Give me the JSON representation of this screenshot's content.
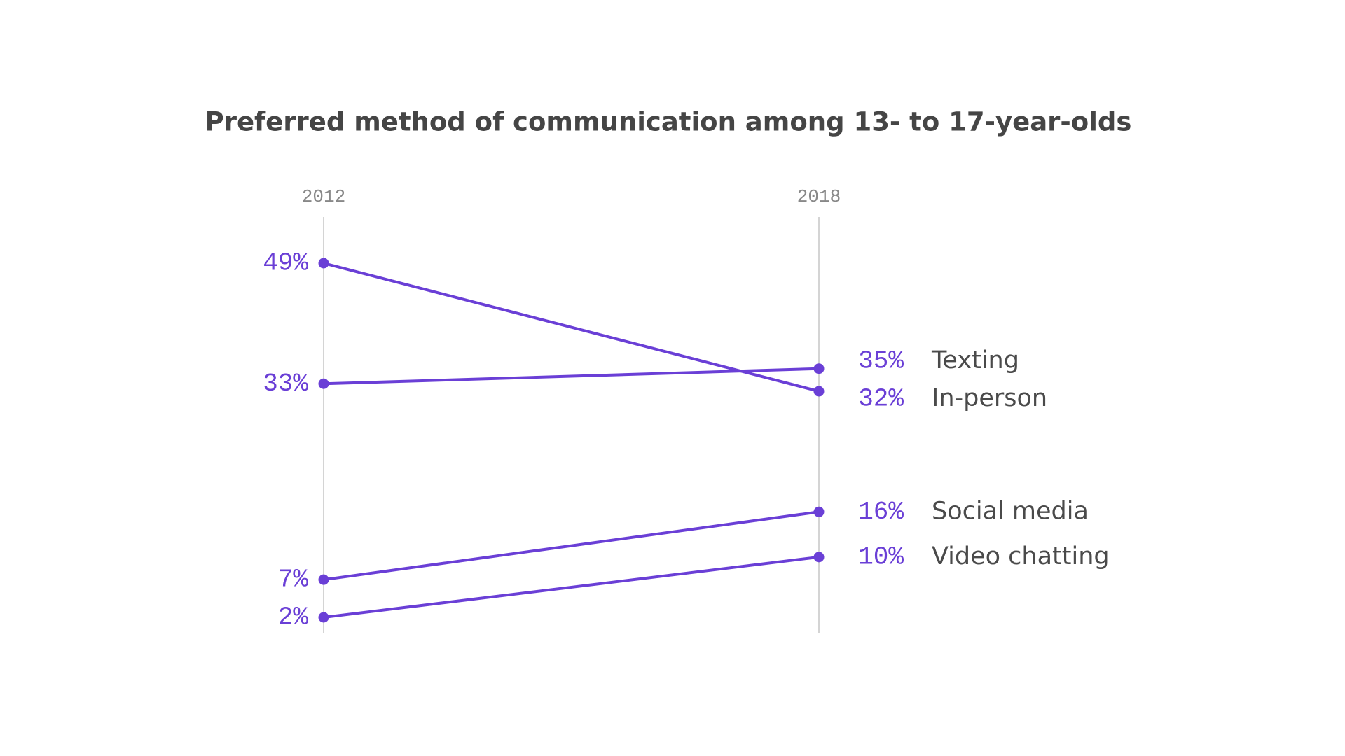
{
  "chart_data": {
    "type": "slope",
    "title": "Preferred method of communication among 13- to 17-year-olds",
    "categories": [
      "2012",
      "2018"
    ],
    "series": [
      {
        "name": "Texting",
        "color": "#6a3fd6",
        "values": [
          33,
          35
        ],
        "value_labels": [
          "33%",
          "35%"
        ]
      },
      {
        "name": "In-person",
        "color": "#6a3fd6",
        "values": [
          49,
          32
        ],
        "value_labels": [
          "49%",
          "32%"
        ]
      },
      {
        "name": "Social media",
        "color": "#6a3fd6",
        "values": [
          7,
          16
        ],
        "value_labels": [
          "7%",
          "16%"
        ]
      },
      {
        "name": "Video chatting",
        "color": "#6a3fd6",
        "values": [
          2,
          10
        ],
        "value_labels": [
          "2%",
          "10%"
        ]
      }
    ]
  }
}
